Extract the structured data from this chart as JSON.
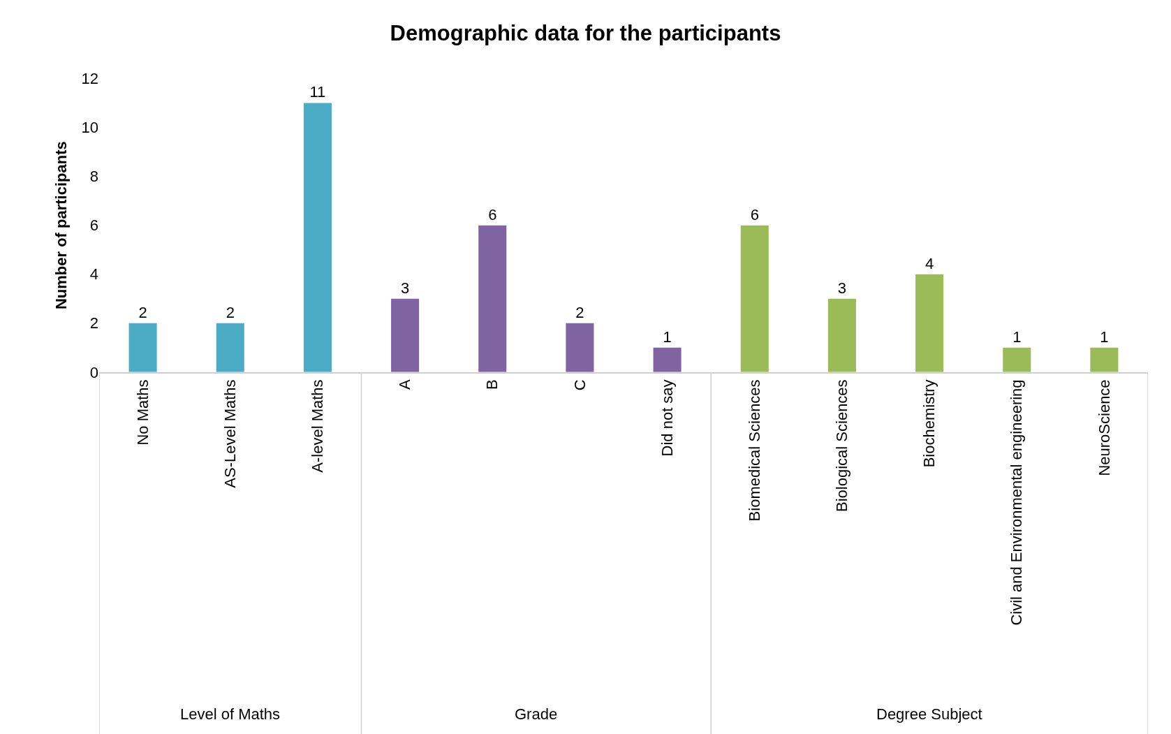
{
  "chart_data": {
    "type": "bar",
    "title": "Demographic data for the participants",
    "ylabel": "Number of participants",
    "categories": [
      "No Maths",
      "AS-Level Maths",
      "A-level Maths",
      "A",
      "B",
      "C",
      "Did not say",
      "Biomedical Sciences",
      "Biological Sciences",
      "Biochemistry",
      "Civil and Environmental engineering",
      "NeuroScience"
    ],
    "values": [
      2,
      2,
      11,
      3,
      6,
      2,
      1,
      6,
      3,
      4,
      1,
      1
    ],
    "colors": [
      "#4bacc6",
      "#4bacc6",
      "#4bacc6",
      "#8064a2",
      "#8064a2",
      "#8064a2",
      "#8064a2",
      "#9bbb59",
      "#9bbb59",
      "#9bbb59",
      "#9bbb59",
      "#9bbb59"
    ],
    "ylim": [
      0,
      12
    ],
    "yticks": [
      0,
      2,
      4,
      6,
      8,
      10,
      12
    ],
    "data_labels": true,
    "annotations": [
      "Level of Maths",
      "Grade",
      "Degree Subject"
    ]
  }
}
